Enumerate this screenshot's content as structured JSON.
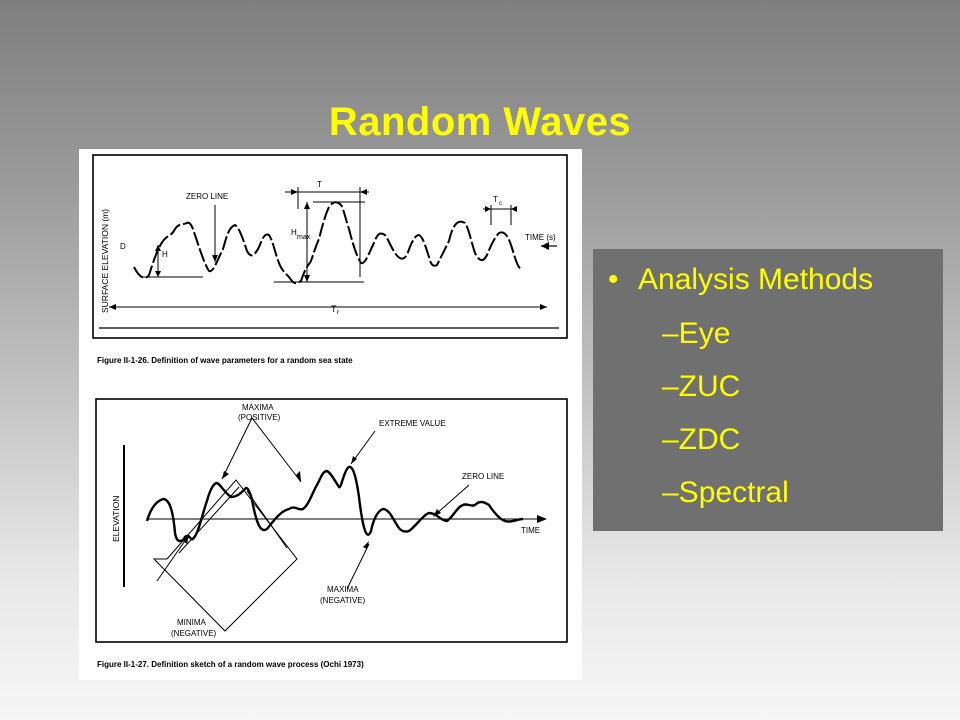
{
  "slide": {
    "title": "Random Waves"
  },
  "figure_top": {
    "ylabel": "SURFACE  ELEVATION  (m)",
    "zero_line": "ZERO  LINE",
    "T": "T",
    "Tc": "T",
    "Tc_sub": "c",
    "Hmax": "H",
    "Hmax_sub": "max",
    "D": "D",
    "H": "H",
    "time": "TIME  (s)",
    "Tr": "T",
    "Tr_sub": "r",
    "caption": "Figure II-1-26.   Definition of wave parameters for a random sea state"
  },
  "figure_bottom": {
    "ylabel": "ELEVATION",
    "maxima_pos_1": "MAXIMA",
    "maxima_pos_2": "(POSITIVE)",
    "extreme": "EXTREME  VALUE",
    "zero_line": "ZERO  LINE",
    "time": "TIME",
    "maxima_neg_1": "MAXIMA",
    "maxima_neg_2": "(NEGATIVE)",
    "minima_1": "MINIMA",
    "minima_2": "(NEGATIVE)",
    "caption": "Figure II-1-27.   Definition sketch of a random wave process (Ochi 1973)"
  },
  "methods": {
    "bullet": "•",
    "heading": "Analysis  Methods",
    "items": [
      "–Eye",
      "–ZUC",
      "–ZDC",
      "–Spectral"
    ]
  },
  "colors": {
    "title": "#ffff00",
    "box": "#707070",
    "text": "#ffff00"
  }
}
